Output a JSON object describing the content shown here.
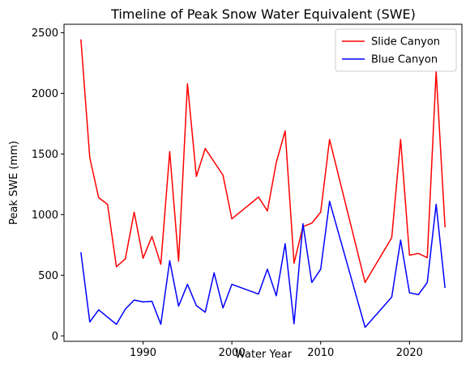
{
  "chart_data": {
    "type": "line",
    "title": "Timeline of Peak Snow Water Equivalent (SWE)",
    "xlabel": "Water Year",
    "ylabel": "Peak SWE (mm)",
    "xlim": [
      1981.1,
      2025.9
    ],
    "ylim": [
      -45,
      2570
    ],
    "xticks": [
      1990,
      2000,
      2010,
      2020
    ],
    "yticks": [
      0,
      500,
      1000,
      1500,
      2000,
      2500
    ],
    "grid": false,
    "legend_position": "top-right",
    "series": [
      {
        "name": "Slide Canyon",
        "color": "#ff0000",
        "x": [
          1983,
          1984,
          1985,
          1986,
          1987,
          1988,
          1989,
          1990,
          1991,
          1992,
          1993,
          1994,
          1995,
          1996,
          1997,
          1999,
          2000,
          2003,
          2004,
          2005,
          2006,
          2007,
          2008,
          2009,
          2010,
          2011,
          2015,
          2018,
          2019,
          2020,
          2021,
          2022,
          2023,
          2024
        ],
        "values": [
          2445,
          1470,
          1140,
          1085,
          570,
          635,
          1020,
          640,
          820,
          590,
          1520,
          615,
          2080,
          1315,
          1545,
          1325,
          965,
          1145,
          1030,
          1430,
          1690,
          600,
          900,
          930,
          1020,
          1620,
          440,
          810,
          1620,
          665,
          680,
          645,
          2180,
          895
        ]
      },
      {
        "name": "Blue Canyon",
        "color": "#0000ff",
        "x": [
          1983,
          1984,
          1985,
          1986,
          1987,
          1988,
          1989,
          1990,
          1991,
          1992,
          1993,
          1994,
          1995,
          1996,
          1997,
          1998,
          1999,
          2000,
          2003,
          2004,
          2005,
          2006,
          2007,
          2008,
          2009,
          2010,
          2011,
          2015,
          2018,
          2019,
          2020,
          2021,
          2022,
          2023,
          2024
        ],
        "values": [
          690,
          115,
          215,
          155,
          95,
          220,
          295,
          280,
          285,
          95,
          620,
          245,
          425,
          250,
          195,
          520,
          230,
          425,
          345,
          550,
          330,
          760,
          100,
          925,
          440,
          550,
          1110,
          70,
          320,
          790,
          355,
          340,
          440,
          1085,
          395
        ]
      }
    ]
  }
}
